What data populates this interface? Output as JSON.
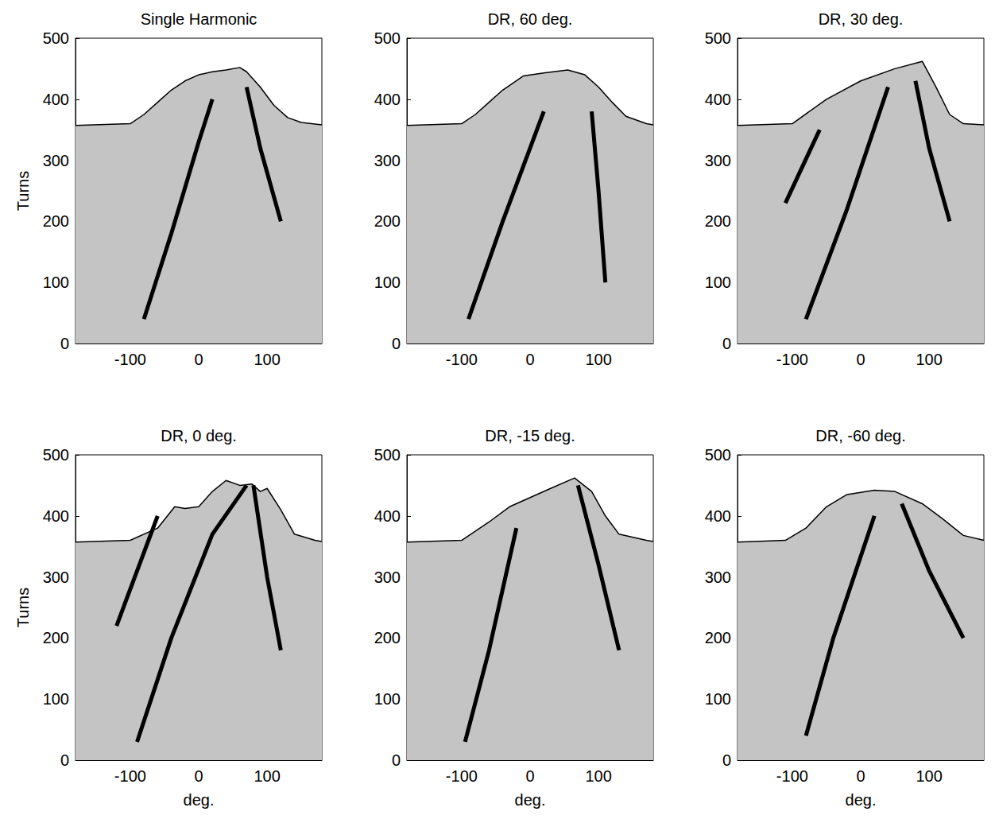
{
  "chart_data": [
    {
      "type": "line",
      "title": "Single Harmonic",
      "ylabel": "Turns",
      "xlim": [
        -180,
        180
      ],
      "xticks": [
        -100,
        0,
        100
      ],
      "ylim": [
        0,
        500
      ],
      "yticks": [
        0,
        100,
        200,
        300,
        400,
        500
      ],
      "series": [
        {
          "type": "area",
          "color": "#000000",
          "x": [
            -180,
            -100,
            -80,
            -60,
            -40,
            -20,
            0,
            20,
            40,
            60,
            70,
            90,
            110,
            130,
            150,
            180
          ],
          "values": [
            357,
            360,
            375,
            395,
            415,
            430,
            440,
            445,
            448,
            452,
            445,
            420,
            390,
            370,
            362,
            358
          ]
        },
        {
          "type": "line",
          "color": "#000000",
          "x": [
            -80,
            -40,
            0,
            20
          ],
          "values": [
            40,
            180,
            330,
            400
          ]
        },
        {
          "type": "line",
          "color": "#000000",
          "x": [
            120,
            90,
            70
          ],
          "values": [
            200,
            320,
            420
          ]
        }
      ]
    },
    {
      "type": "line",
      "title": "DR, 60 deg.",
      "xlim": [
        -180,
        180
      ],
      "xticks": [
        -100,
        0,
        100
      ],
      "ylim": [
        0,
        500
      ],
      "yticks": [
        0,
        100,
        200,
        300,
        400,
        500
      ],
      "series": [
        {
          "type": "area",
          "color": "#000000",
          "x": [
            -180,
            -100,
            -80,
            -60,
            -40,
            -10,
            20,
            55,
            80,
            100,
            120,
            140,
            170,
            180
          ],
          "values": [
            357,
            360,
            375,
            395,
            415,
            438,
            443,
            448,
            440,
            420,
            395,
            372,
            360,
            358
          ]
        },
        {
          "type": "line",
          "color": "#000000",
          "x": [
            -90,
            -40,
            20
          ],
          "values": [
            40,
            200,
            380
          ]
        },
        {
          "type": "line",
          "color": "#000000",
          "x": [
            110,
            100,
            90
          ],
          "values": [
            100,
            250,
            380
          ]
        }
      ]
    },
    {
      "type": "line",
      "title": "DR, 30 deg.",
      "xlim": [
        -180,
        180
      ],
      "xticks": [
        -100,
        0,
        100
      ],
      "ylim": [
        0,
        500
      ],
      "yticks": [
        0,
        100,
        200,
        300,
        400,
        500
      ],
      "series": [
        {
          "type": "area",
          "color": "#000000",
          "x": [
            -180,
            -100,
            -50,
            0,
            50,
            90,
            110,
            130,
            150,
            180
          ],
          "values": [
            357,
            360,
            400,
            430,
            450,
            462,
            420,
            375,
            360,
            358
          ]
        },
        {
          "type": "line",
          "color": "#000000",
          "x": [
            -80,
            -20,
            40
          ],
          "values": [
            40,
            220,
            420
          ]
        },
        {
          "type": "line",
          "color": "#000000",
          "x": [
            130,
            100,
            80
          ],
          "values": [
            200,
            320,
            430
          ]
        },
        {
          "type": "line",
          "color": "#000000",
          "x": [
            -110,
            -60
          ],
          "values": [
            230,
            350
          ]
        }
      ]
    },
    {
      "type": "line",
      "title": "DR, 0 deg.",
      "xlabel": "deg.",
      "ylabel": "Turns",
      "xlim": [
        -180,
        180
      ],
      "xticks": [
        -100,
        0,
        100
      ],
      "ylim": [
        0,
        500
      ],
      "yticks": [
        0,
        100,
        200,
        300,
        400,
        500
      ],
      "series": [
        {
          "type": "area",
          "color": "#000000",
          "x": [
            -180,
            -100,
            -60,
            -35,
            -20,
            0,
            20,
            40,
            60,
            78,
            90,
            100,
            120,
            140,
            170,
            180
          ],
          "values": [
            357,
            360,
            380,
            415,
            412,
            415,
            440,
            458,
            450,
            452,
            440,
            445,
            410,
            370,
            360,
            358
          ]
        },
        {
          "type": "line",
          "color": "#000000",
          "x": [
            -90,
            -40,
            20,
            70
          ],
          "values": [
            30,
            200,
            370,
            450
          ]
        },
        {
          "type": "line",
          "color": "#000000",
          "x": [
            120,
            100,
            80
          ],
          "values": [
            180,
            300,
            450
          ]
        },
        {
          "type": "line",
          "color": "#000000",
          "x": [
            -120,
            -60
          ],
          "values": [
            220,
            400
          ]
        }
      ]
    },
    {
      "type": "line",
      "title": "DR, -15 deg.",
      "xlabel": "deg.",
      "xlim": [
        -180,
        180
      ],
      "xticks": [
        -100,
        0,
        100
      ],
      "ylim": [
        0,
        500
      ],
      "yticks": [
        0,
        100,
        200,
        300,
        400,
        500
      ],
      "series": [
        {
          "type": "area",
          "color": "#000000",
          "x": [
            -180,
            -100,
            -60,
            -30,
            0,
            30,
            65,
            90,
            110,
            130,
            170,
            180
          ],
          "values": [
            357,
            360,
            390,
            415,
            430,
            445,
            462,
            440,
            400,
            370,
            360,
            358
          ]
        },
        {
          "type": "line",
          "color": "#000000",
          "x": [
            -95,
            -60,
            -20
          ],
          "values": [
            30,
            180,
            380
          ]
        },
        {
          "type": "line",
          "color": "#000000",
          "x": [
            130,
            100,
            70
          ],
          "values": [
            180,
            320,
            450
          ]
        }
      ]
    },
    {
      "type": "line",
      "title": "DR, -60 deg.",
      "xlabel": "deg.",
      "xlim": [
        -180,
        180
      ],
      "xticks": [
        -100,
        0,
        100
      ],
      "ylim": [
        0,
        500
      ],
      "yticks": [
        0,
        100,
        200,
        300,
        400,
        500
      ],
      "series": [
        {
          "type": "area",
          "color": "#000000",
          "x": [
            -180,
            -110,
            -80,
            -50,
            -20,
            20,
            50,
            90,
            120,
            150,
            180
          ],
          "values": [
            357,
            360,
            380,
            415,
            435,
            442,
            440,
            420,
            395,
            368,
            360
          ]
        },
        {
          "type": "line",
          "color": "#000000",
          "x": [
            -80,
            -40,
            20
          ],
          "values": [
            40,
            200,
            400
          ]
        },
        {
          "type": "line",
          "color": "#000000",
          "x": [
            150,
            100,
            60
          ],
          "values": [
            200,
            310,
            420
          ]
        }
      ]
    }
  ]
}
